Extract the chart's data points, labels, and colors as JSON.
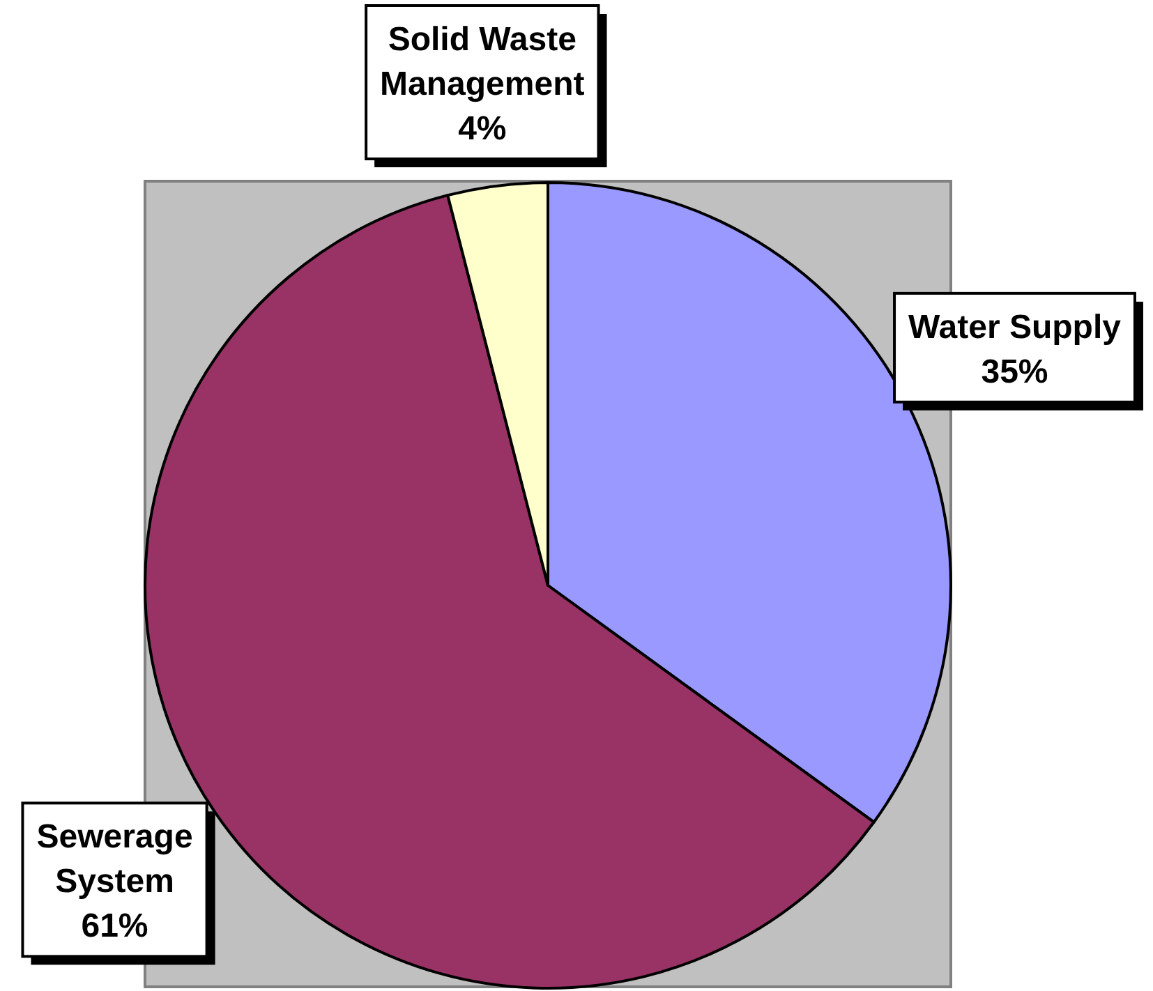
{
  "chart_data": {
    "type": "pie",
    "categories": [
      "Water Supply",
      "Sewerage System",
      "Solid Waste Management"
    ],
    "values": [
      35,
      61,
      4
    ],
    "colors": [
      "#9999ff",
      "#993366",
      "#ffffcc"
    ],
    "value_labels": [
      "35%",
      "61%",
      "4%"
    ]
  }
}
